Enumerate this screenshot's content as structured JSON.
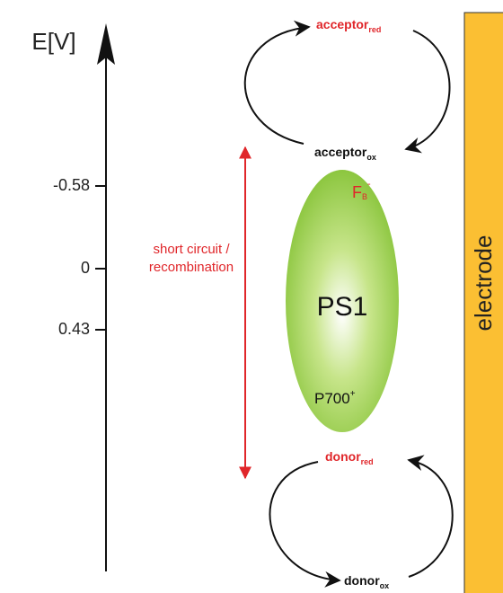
{
  "axis": {
    "label": "E[V]",
    "ticks": [
      "-0.58",
      "0",
      "0.43"
    ]
  },
  "acceptor_red": {
    "text": "acceptor",
    "sub": "red"
  },
  "acceptor_ox": {
    "text": "acceptor",
    "sub": "ox"
  },
  "donor_red": {
    "text": "donor",
    "sub": "red"
  },
  "donor_ox": {
    "text": "donor",
    "sub": "ox"
  },
  "ps1": {
    "label": "PS1",
    "fb": {
      "text": "F",
      "sub": "B",
      "sup": "-"
    },
    "p700": {
      "text": "P700",
      "sup": "+"
    }
  },
  "short_circuit": [
    "short circuit /",
    "recombination"
  ],
  "electrode": "electrode"
}
